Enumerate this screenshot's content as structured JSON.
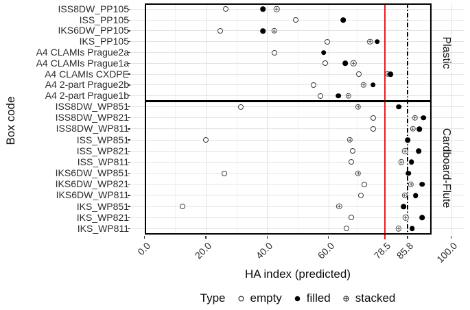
{
  "figure": {
    "xlabel": "HA index (predicted)",
    "ylabel": "Box code"
  },
  "chart_data": {
    "type": "scatter",
    "title": "",
    "xlabel": "HA index (predicted)",
    "ylabel": "Box code",
    "x_ticks": [
      0,
      20,
      40,
      60,
      78.5,
      85.8,
      100
    ],
    "x_tick_labels": [
      "0.0",
      "20.0",
      "40.0",
      "60.0",
      "78.5",
      "85.8",
      "100.0"
    ],
    "xlim": [
      -4.4,
      104.1
    ],
    "grid": true,
    "legend": {
      "title": "Type",
      "position": "bottom",
      "items": [
        {
          "id": "empty",
          "label": "empty"
        },
        {
          "id": "filled",
          "label": "filled"
        },
        {
          "id": "stacked",
          "label": "stacked"
        }
      ]
    },
    "ref_lines": [
      {
        "value": 78.5,
        "style": "solid",
        "color": "#ec1c1c"
      },
      {
        "value": 85.8,
        "style": "dash-dot",
        "color": "#000000"
      }
    ],
    "point_colors": {
      "filled": "#000000",
      "empty_stroke": "#3a3a3a",
      "stacked_stroke": "#4a4a4a"
    },
    "facets": [
      {
        "label": "Plastic",
        "rows": [
          {
            "category": "ISS8DW_PP105",
            "empty": 26.4,
            "filled": 38.6,
            "stacked": 43.1
          },
          {
            "category": "ISS_PP105",
            "empty": 49.4,
            "filled": 64.8,
            "stacked": null
          },
          {
            "category": "IKS6DW_PP105",
            "empty": 24.7,
            "filled": 38.7,
            "stacked": 42.3
          },
          {
            "category": "IKS_PP105",
            "empty": 59.6,
            "filled": 75.9,
            "stacked": 73.6
          },
          {
            "category": "A4 CLAMIs Prague2a",
            "empty": 42.5,
            "filled": 58.4,
            "stacked": null
          },
          {
            "category": "A4 CLAMIs Prague1a",
            "empty": 59.0,
            "filled": 65.5,
            "stacked": 68.2
          },
          {
            "category": "A4 CLAMIs CXDPE",
            "empty": 70.0,
            "filled": 80.3,
            "stacked": 79.2
          },
          {
            "category": "A4 2-part Prague2b",
            "empty": 55.1,
            "filled": 74.5,
            "stacked": 71.5
          },
          {
            "category": "A4 2-part Prague1b",
            "empty": 57.3,
            "filled": 63.3,
            "stacked": 66.5
          }
        ]
      },
      {
        "label": "Cardboard-Flute",
        "rows": [
          {
            "category": "ISS8DW_WP851",
            "empty": 31.5,
            "filled": 82.9,
            "stacked": 69.7
          },
          {
            "category": "ISS8DW_WP821",
            "empty": 74.5,
            "filled": 91.0,
            "stacked": 88.2
          },
          {
            "category": "ISS8DW_WP811",
            "empty": 74.5,
            "filled": 89.7,
            "stacked": 87.5
          },
          {
            "category": "ISS_WP851",
            "empty": 20.1,
            "filled": 85.8,
            "stacked": 67.0
          },
          {
            "category": "ISS_WP821",
            "empty": 67.8,
            "filled": 89.4,
            "stacked": 85.0
          },
          {
            "category": "ISS_WP811",
            "empty": 67.4,
            "filled": 87.1,
            "stacked": 83.7
          },
          {
            "category": "IKS6DW_WP851",
            "empty": 26.1,
            "filled": 86.1,
            "stacked": 69.7
          },
          {
            "category": "IKS6DW_WP821",
            "empty": 71.8,
            "filled": 90.6,
            "stacked": 86.9
          },
          {
            "category": "IKS6DW_WP811",
            "empty": 70.6,
            "filled": 88.4,
            "stacked": 84.8
          },
          {
            "category": "IKS_WP851",
            "empty": 12.4,
            "filled": 84.5,
            "stacked": 63.5
          },
          {
            "category": "IKS_WP821",
            "empty": 67.4,
            "filled": 90.6,
            "stacked": 85.2
          },
          {
            "category": "IKS_WP811",
            "empty": 65.8,
            "filled": 87.3,
            "stacked": 82.9
          }
        ]
      }
    ]
  }
}
